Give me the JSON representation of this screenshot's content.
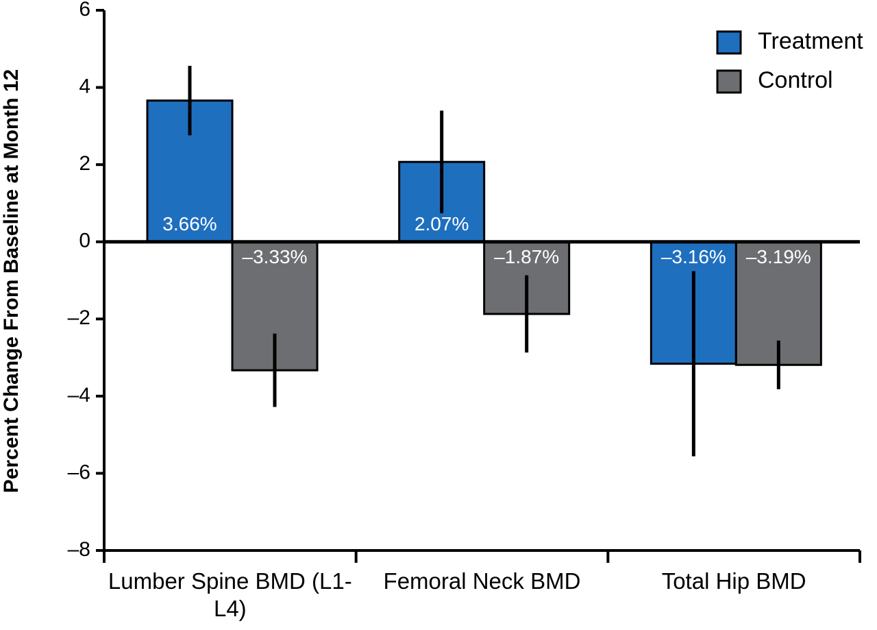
{
  "chart_data": {
    "type": "bar",
    "y_label": "Percent Change From Baseline at Month 12",
    "categories": [
      "Lumber Spine BMD (L1-L4)",
      "Femoral Neck BMD",
      "Total Hip BMD"
    ],
    "series": [
      {
        "name": "Treatment",
        "color": "#1f6fbf",
        "values": [
          3.66,
          2.07,
          -3.16
        ],
        "value_labels": [
          "3.66%",
          "2.07%",
          "–3.16%"
        ],
        "errors": [
          0.9,
          1.33,
          2.4
        ]
      },
      {
        "name": "Control",
        "color": "#6d6e71",
        "values": [
          -3.33,
          -1.87,
          -3.19
        ],
        "value_labels": [
          "–3.33%",
          "–1.87%",
          "–3.19%"
        ],
        "errors": [
          0.95,
          1.0,
          0.63
        ]
      }
    ],
    "ylim": [
      -8,
      6
    ],
    "yticks": [
      {
        "value": -8,
        "label": "–8"
      },
      {
        "value": -6,
        "label": "–6"
      },
      {
        "value": -4,
        "label": "–4"
      },
      {
        "value": -2,
        "label": "–2"
      },
      0,
      2,
      4,
      6
    ],
    "legend": "upper right"
  }
}
